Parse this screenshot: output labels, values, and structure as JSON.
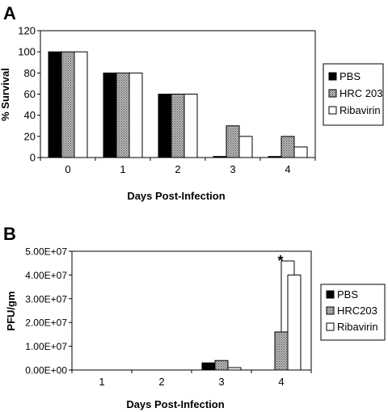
{
  "chart_data": [
    {
      "panel": "A",
      "type": "bar",
      "categories": [
        "0",
        "1",
        "2",
        "3",
        "4"
      ],
      "series": [
        {
          "name": "PBS",
          "values": [
            100,
            80,
            60,
            1,
            1
          ]
        },
        {
          "name": "HRC 203",
          "values": [
            100,
            80,
            60,
            30,
            20
          ]
        },
        {
          "name": "Ribavirin",
          "values": [
            100,
            80,
            60,
            20,
            10
          ]
        }
      ],
      "xlabel": "Days Post-Infection",
      "ylabel": "% Survival",
      "ylim": [
        0,
        120
      ],
      "yticks": [
        "0",
        "20",
        "40",
        "60",
        "80",
        "100",
        "120"
      ],
      "legend_position": "right"
    },
    {
      "panel": "B",
      "type": "bar",
      "categories": [
        "1",
        "2",
        "3",
        "4"
      ],
      "series": [
        {
          "name": "PBS",
          "values": [
            0,
            0,
            3000000,
            0
          ]
        },
        {
          "name": "HRC203",
          "values": [
            0,
            0,
            4000000,
            16000000
          ]
        },
        {
          "name": "Ribavirin",
          "values": [
            0,
            0,
            1000000,
            40000000
          ]
        }
      ],
      "xlabel": "Days Post-Infection",
      "ylabel": "PFU/gm",
      "ylim": [
        0,
        50000000
      ],
      "yticks": [
        "0.00E+00",
        "1.00E+07",
        "2.00E+07",
        "3.00E+07",
        "4.00E+07",
        "5.00E+07"
      ],
      "annotation": "*",
      "legend_position": "right"
    }
  ],
  "colors": {
    "pbs": "#000000",
    "hrc": "#9a9a9a",
    "ribavirin": "#ffffff",
    "axis": "#000000"
  }
}
